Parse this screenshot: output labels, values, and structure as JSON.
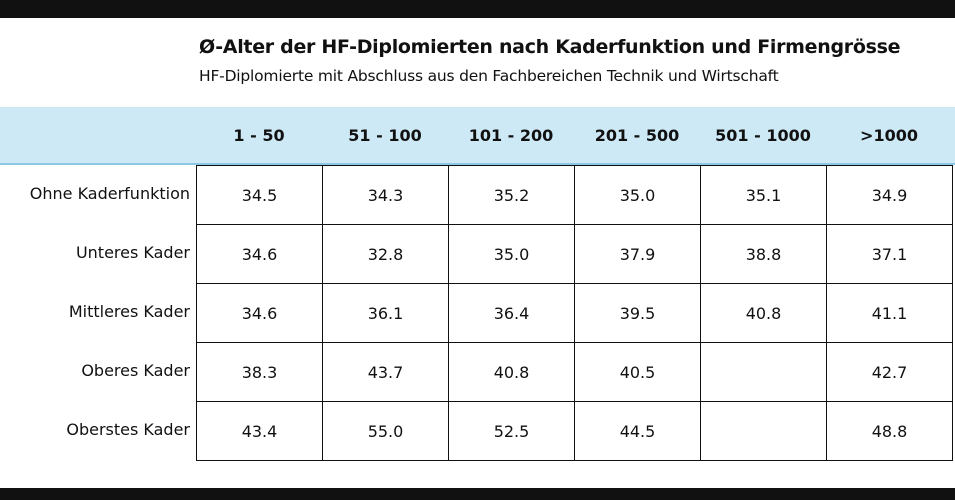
{
  "header": {
    "title": "Ø-Alter der HF-Diplomierten nach Kaderfunktion und Firmengrösse",
    "subtitle": "HF-Diplomierte mit Abschluss aus den Fachbereichen Technik und Wirtschaft"
  },
  "table": {
    "columns": [
      "1 - 50",
      "51 - 100",
      "101 - 200",
      "201 - 500",
      "501 - 1000",
      ">1000"
    ],
    "rows": [
      {
        "label": "Ohne Kaderfunktion",
        "values": [
          "34.5",
          "34.3",
          "35.2",
          "35.0",
          "35.1",
          "34.9"
        ]
      },
      {
        "label": "Unteres Kader",
        "values": [
          "34.6",
          "32.8",
          "35.0",
          "37.9",
          "38.8",
          "37.1"
        ]
      },
      {
        "label": "Mittleres Kader",
        "values": [
          "34.6",
          "36.1",
          "36.4",
          "39.5",
          "40.8",
          "41.1"
        ]
      },
      {
        "label": "Oberes Kader",
        "values": [
          "38.3",
          "43.7",
          "40.8",
          "40.5",
          null,
          "42.7"
        ]
      },
      {
        "label": "Oberstes Kader",
        "values": [
          "43.4",
          "55.0",
          "52.5",
          "44.5",
          null,
          "48.8"
        ]
      }
    ]
  }
}
